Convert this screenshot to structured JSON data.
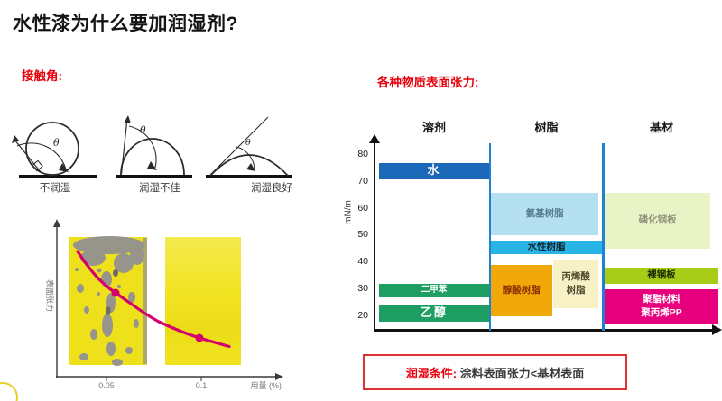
{
  "slide": {
    "title": "水性漆为什么要加润湿剂?",
    "section_left": "接触角:",
    "section_right": "各种物质表面张力:"
  },
  "contact_angle": {
    "theta": "θ",
    "labels": [
      "不润湿",
      "润湿不佳",
      "润湿良好"
    ]
  },
  "condition_box": {
    "prefix": "润湿条件:",
    "text": " 涂料表面张力<基材表面"
  },
  "colors": {
    "accent_red": "#e8000d",
    "curve_magenta": "#d4006e",
    "divider_blue": "#1e82d2",
    "water_blue": "#1b67b8",
    "solvent_green": "#1f9e63"
  },
  "chart_data": [
    {
      "id": "surface-tension-by-material",
      "type": "bar",
      "title": "各种物质表面张力:",
      "ylabel": "mN/m",
      "yticks": [
        80,
        70,
        60,
        50,
        40,
        30,
        20
      ],
      "ylim": [
        15,
        82
      ],
      "grid": false,
      "columns": [
        {
          "key": "solvent",
          "label": "溶剂"
        },
        {
          "key": "resin",
          "label": "树脂"
        },
        {
          "key": "substrate",
          "label": "基材"
        }
      ],
      "bars": [
        {
          "lines": [
            "水"
          ],
          "column": "solvent",
          "min": 71,
          "max": 77,
          "color": "#1b67b8",
          "text_color": "#ffffff",
          "emphasis": true
        },
        {
          "lines": [
            "二甲苯"
          ],
          "column": "solvent",
          "min": 27,
          "max": 32,
          "color": "#1f9e63",
          "text_color": "#ffffff",
          "small": true
        },
        {
          "lines": [
            "乙醇"
          ],
          "column": "solvent",
          "min": 18,
          "max": 24,
          "color": "#1f9e63",
          "text_color": "#ffffff",
          "emphasis": true
        },
        {
          "lines": [
            "氨基树脂"
          ],
          "column": "resin",
          "min": 50,
          "max": 66,
          "color": "#b5e0f2",
          "text_color": "#56808f",
          "x0": 0,
          "x1": 0.97
        },
        {
          "lines": [
            "水性树脂"
          ],
          "column": "resin",
          "min": 43,
          "max": 48,
          "color": "#29b4e8",
          "text_color": "#10242e"
        },
        {
          "lines": [
            "醇酸树脂"
          ],
          "column": "resin",
          "min": 20,
          "max": 39,
          "color": "#f1a80a",
          "text_color": "#8b2e00",
          "x0": 0,
          "x1": 0.55
        },
        {
          "lines": [
            "丙烯酸",
            "树脂"
          ],
          "column": "resin",
          "min": 23,
          "max": 41,
          "color": "#f8f1c6",
          "text_color": "#4d4a2e",
          "x0": 0.565,
          "x1": 0.965
        },
        {
          "lines": [
            "磷化钢板"
          ],
          "column": "substrate",
          "min": 45,
          "max": 66,
          "color": "#e9f4c6",
          "text_color": "#8f937a",
          "x0": 0,
          "x1": 0.93
        },
        {
          "lines": [
            "裸钢板"
          ],
          "column": "substrate",
          "min": 32,
          "max": 38,
          "color": "#a8cc17",
          "text_color": "#1d2a00"
        },
        {
          "lines": [
            "聚酯材料",
            "聚丙烯PP"
          ],
          "column": "substrate",
          "min": 17,
          "max": 30,
          "color": "#e6007e",
          "text_color": "#ffffff"
        }
      ]
    },
    {
      "id": "wetting-agent-dosage-curve",
      "type": "line",
      "xlabel": "用量 (%)",
      "ylabel": "表面张力",
      "xticks": [
        "0.05",
        "0.1"
      ],
      "marked_points_x": [
        "0.05",
        "0.1"
      ],
      "trend": "surface tension decreases (convex falling curve) as wetting-agent dosage increases; coating panel at 0.05% shows craters/defects, panel at 0.1% is uniform"
    }
  ]
}
